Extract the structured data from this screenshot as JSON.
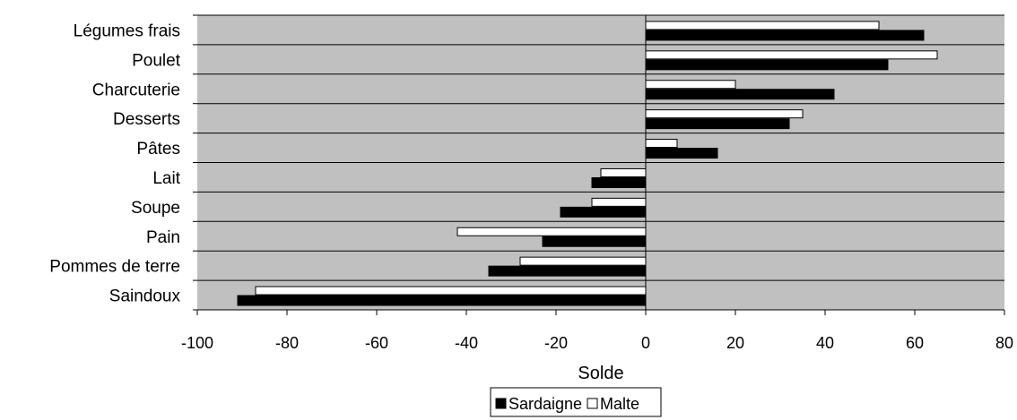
{
  "chart_data": {
    "type": "bar",
    "orientation": "horizontal",
    "categories": [
      "Légumes frais",
      "Poulet",
      "Charcuterie",
      "Desserts",
      "Pâtes",
      "Lait",
      "Soupe",
      "Pain",
      "Pommes de terre",
      "Saindoux"
    ],
    "series": [
      {
        "name": "Sardaigne",
        "values": [
          62,
          54,
          42,
          32,
          16,
          -12,
          -19,
          -23,
          -35,
          -91
        ]
      },
      {
        "name": "Malte",
        "values": [
          52,
          65,
          20,
          35,
          7,
          -10,
          -12,
          -42,
          -28,
          -87
        ]
      }
    ],
    "xlabel": "Solde",
    "xlim": [
      -100,
      80
    ],
    "xticks": [
      "-100",
      "-80",
      "-60",
      "-40",
      "-20",
      "0",
      "20",
      "40",
      "60",
      "80"
    ],
    "grid": true,
    "legend_position": "bottom",
    "colors": {
      "plot_background": "#c0c0c0",
      "gridline": "#000000",
      "sardaigne": "#000000",
      "malte": "#ffffff"
    }
  }
}
